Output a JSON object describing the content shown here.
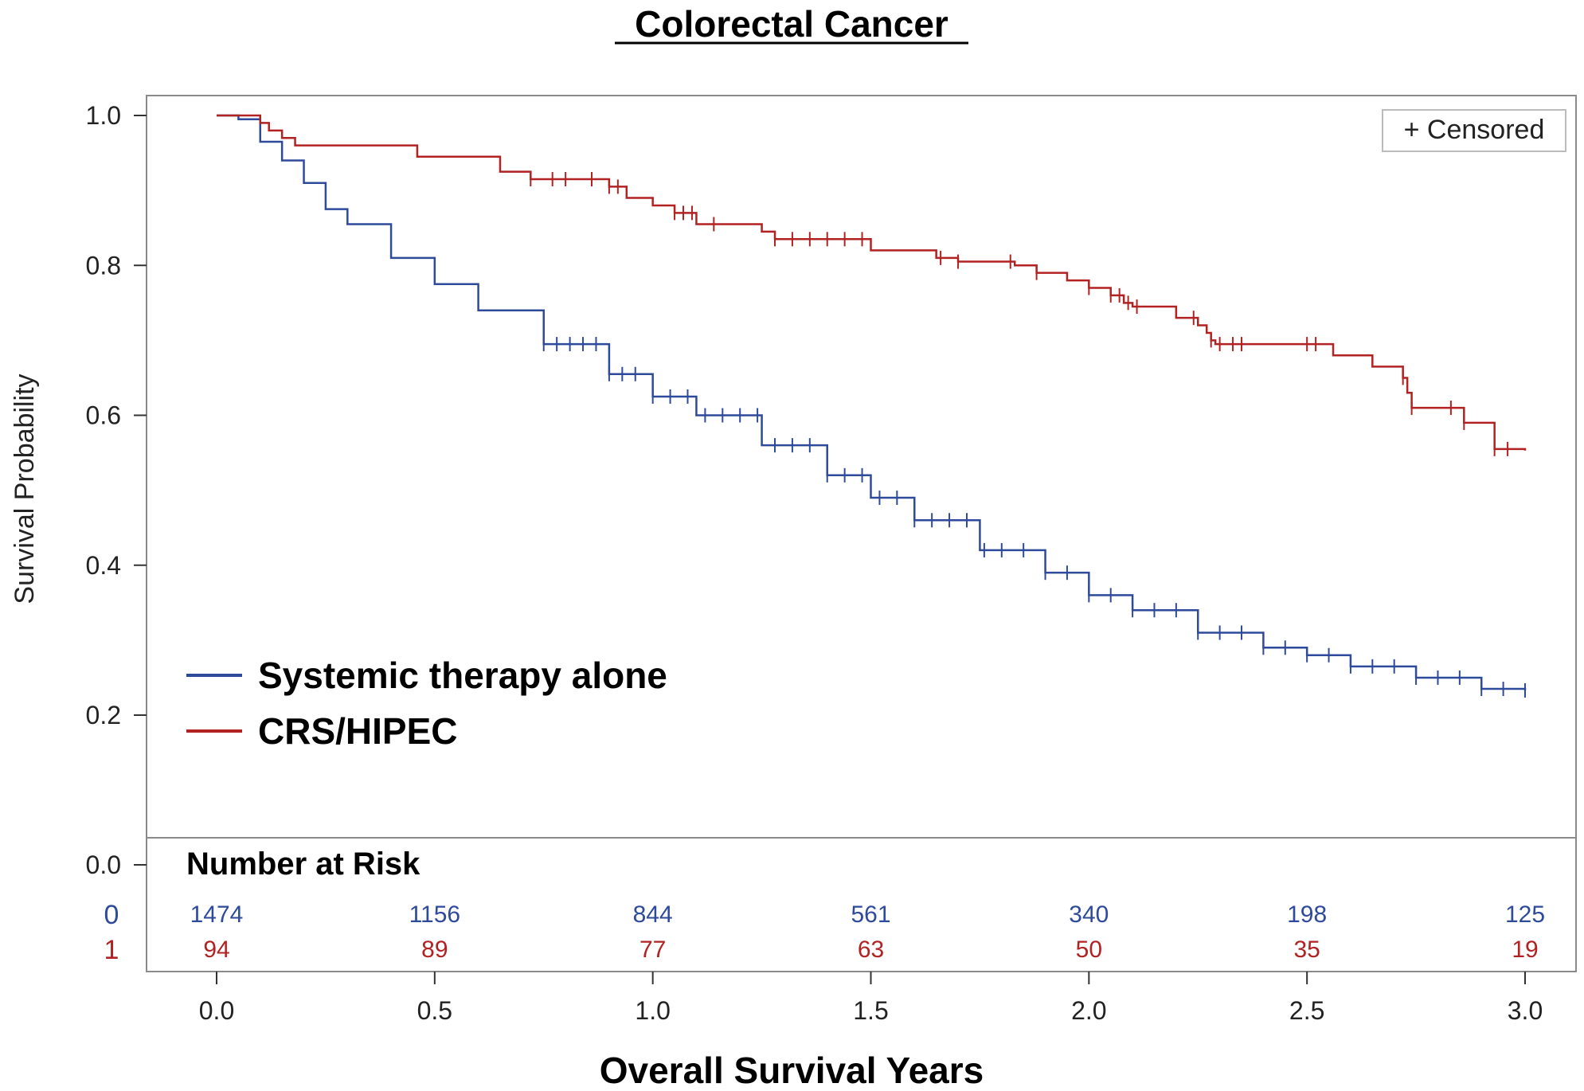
{
  "colors": {
    "systemic": "#2e4a9a",
    "crs": "#b22222",
    "frame": "#8a8a8a",
    "axis": "#333333"
  },
  "chart_data": {
    "type": "line",
    "subtype": "kaplan-meier",
    "title": "Colorectal Cancer",
    "xlabel": "Overall Survival Years",
    "ylabel": "Survival Probability",
    "xlim": [
      0,
      3.0
    ],
    "ylim": [
      0,
      1.0
    ],
    "xticks": [
      "0.0",
      "0.5",
      "1.0",
      "1.5",
      "2.0",
      "2.5",
      "3.0"
    ],
    "yticks": [
      "0.0",
      "0.2",
      "0.4",
      "0.6",
      "0.8",
      "1.0"
    ],
    "censor_legend": "+ Censored",
    "legend_position": "bottom-left",
    "series": [
      {
        "name": "Systemic therapy alone",
        "color": "#2e4a9a",
        "x": [
          0,
          0.05,
          0.1,
          0.15,
          0.2,
          0.25,
          0.3,
          0.4,
          0.5,
          0.6,
          0.75,
          0.9,
          1.0,
          1.1,
          1.25,
          1.4,
          1.5,
          1.6,
          1.75,
          1.9,
          2.0,
          2.1,
          2.25,
          2.4,
          2.5,
          2.6,
          2.75,
          2.9,
          3.0
        ],
        "y": [
          1.0,
          0.995,
          0.965,
          0.94,
          0.91,
          0.875,
          0.855,
          0.81,
          0.775,
          0.74,
          0.695,
          0.655,
          0.625,
          0.6,
          0.56,
          0.52,
          0.49,
          0.46,
          0.42,
          0.39,
          0.36,
          0.34,
          0.31,
          0.29,
          0.28,
          0.265,
          0.25,
          0.235,
          0.233
        ],
        "censored_x": [
          0.75,
          0.78,
          0.81,
          0.84,
          0.87,
          0.9,
          0.93,
          0.96,
          1.0,
          1.04,
          1.08,
          1.12,
          1.16,
          1.2,
          1.24,
          1.28,
          1.32,
          1.36,
          1.4,
          1.44,
          1.48,
          1.52,
          1.56,
          1.6,
          1.64,
          1.68,
          1.72,
          1.76,
          1.8,
          1.85,
          1.9,
          1.95,
          2.0,
          2.05,
          2.1,
          2.15,
          2.2,
          2.25,
          2.3,
          2.35,
          2.4,
          2.45,
          2.5,
          2.55,
          2.6,
          2.65,
          2.7,
          2.75,
          2.8,
          2.85,
          2.9,
          2.95,
          3.0
        ]
      },
      {
        "name": "CRS/HIPEC",
        "color": "#b22222",
        "x": [
          0,
          0.1,
          0.12,
          0.15,
          0.18,
          0.46,
          0.65,
          0.72,
          0.9,
          0.94,
          1.0,
          1.05,
          1.1,
          1.25,
          1.28,
          1.5,
          1.65,
          1.7,
          1.83,
          1.88,
          1.95,
          2.0,
          2.05,
          2.08,
          2.1,
          2.2,
          2.25,
          2.27,
          2.28,
          2.29,
          2.56,
          2.65,
          2.72,
          2.73,
          2.74,
          2.86,
          2.93,
          3.0
        ],
        "y": [
          1.0,
          0.99,
          0.98,
          0.97,
          0.96,
          0.945,
          0.925,
          0.915,
          0.905,
          0.89,
          0.88,
          0.87,
          0.855,
          0.845,
          0.835,
          0.82,
          0.81,
          0.805,
          0.8,
          0.79,
          0.78,
          0.77,
          0.76,
          0.75,
          0.745,
          0.73,
          0.72,
          0.71,
          0.7,
          0.695,
          0.68,
          0.665,
          0.65,
          0.63,
          0.61,
          0.59,
          0.555,
          0.553
        ],
        "censored_x": [
          0.72,
          0.77,
          0.8,
          0.86,
          0.9,
          0.92,
          1.05,
          1.07,
          1.09,
          1.14,
          1.28,
          1.32,
          1.36,
          1.4,
          1.44,
          1.48,
          1.66,
          1.7,
          1.82,
          1.88,
          2.0,
          2.05,
          2.07,
          2.09,
          2.11,
          2.24,
          2.28,
          2.3,
          2.33,
          2.35,
          2.5,
          2.52,
          2.72,
          2.74,
          2.83,
          2.86,
          2.93,
          2.96
        ]
      }
    ],
    "risk_table": {
      "title": "Number at Risk",
      "times": [
        0,
        0.5,
        1.0,
        1.5,
        2.0,
        2.5,
        3.0
      ],
      "rows": [
        {
          "group": "0",
          "color": "#2e4a9a",
          "values": [
            "1474",
            "1156",
            "844",
            "561",
            "340",
            "198",
            "125"
          ]
        },
        {
          "group": "1",
          "color": "#b22222",
          "values": [
            "94",
            "89",
            "77",
            "63",
            "50",
            "35",
            "19"
          ]
        }
      ]
    }
  }
}
